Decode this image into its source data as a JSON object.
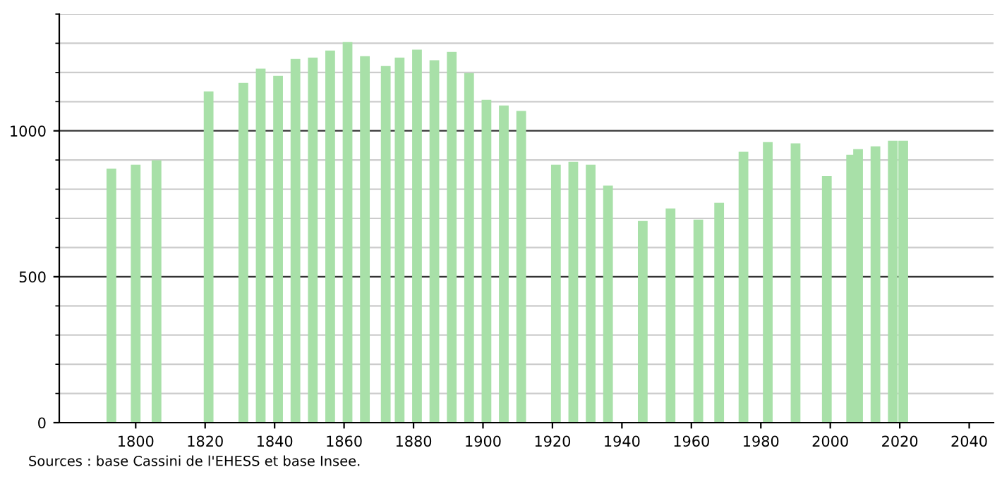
{
  "chart_data": {
    "type": "bar",
    "x": [
      1793,
      1800,
      1806,
      1821,
      1831,
      1836,
      1841,
      1846,
      1851,
      1856,
      1861,
      1866,
      1872,
      1876,
      1881,
      1886,
      1891,
      1896,
      1901,
      1906,
      1911,
      1921,
      1926,
      1931,
      1936,
      1946,
      1954,
      1962,
      1968,
      1975,
      1982,
      1990,
      1999,
      2006,
      2008,
      2013,
      2018,
      2021
    ],
    "values": [
      870,
      884,
      899,
      1135,
      1164,
      1213,
      1188,
      1246,
      1251,
      1275,
      1304,
      1256,
      1222,
      1251,
      1278,
      1242,
      1270,
      1198,
      1106,
      1087,
      1068,
      884,
      894,
      884,
      812,
      691,
      734,
      696,
      754,
      928,
      961,
      957,
      845,
      918,
      937,
      947,
      966,
      966
    ],
    "color": "#a8e0a8",
    "xlim": [
      1778,
      2047
    ],
    "xticks": [
      1800,
      1820,
      1840,
      1860,
      1880,
      1900,
      1920,
      1940,
      1960,
      1980,
      2000,
      2020,
      2040
    ],
    "ylim": [
      0,
      1400
    ],
    "yticks": [
      0,
      500,
      1000
    ],
    "grid": "y",
    "annotations": [
      "Sources : base Cassini de l'EHESS et base Insee."
    ]
  }
}
